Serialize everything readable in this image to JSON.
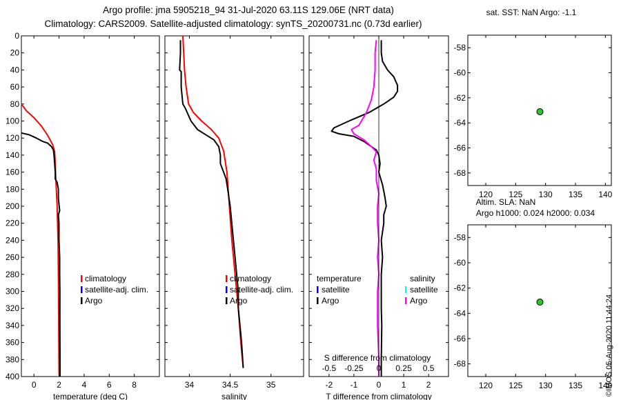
{
  "header": {
    "line1": "Argo profile: jma 5905218_94 31-Jul-2020 63.11S 129.06E (NRT data)",
    "line2": "Climatology: CARS2009. Satellite-adjusted climatology: synTS_20200731.nc (0.73d earlier)"
  },
  "stamp": "©IMOS 05-Aug-2020 11:44:24",
  "colors": {
    "climatology": "#ff0000",
    "satellite": "#0000ff",
    "argo": "#000000",
    "salinity_argo": "#ff00ff",
    "salinity_satellite": "#00ffff",
    "marker_fill": "#22cc22"
  },
  "chart_data": [
    {
      "id": "temperature",
      "type": "line",
      "xlabel": "temperature (deg C)",
      "xlim": [
        -1,
        10
      ],
      "ylim": [
        400,
        0
      ],
      "xticks": [
        0,
        2,
        4,
        6,
        8
      ],
      "xtick_labels": [
        "0",
        "2",
        "4",
        "6",
        "8"
      ],
      "yticks": [
        0,
        20,
        40,
        60,
        80,
        100,
        120,
        140,
        160,
        180,
        200,
        220,
        240,
        260,
        280,
        300,
        320,
        340,
        360,
        380,
        400
      ],
      "ytick_labels": [
        "0",
        "20",
        "40",
        "60",
        "80",
        "100",
        "120",
        "140",
        "160",
        "180",
        "200",
        "220",
        "240",
        "260",
        "280",
        "300",
        "320",
        "340",
        "360",
        "380",
        "400"
      ],
      "legend": [
        "climatology",
        "satellite-adj. clim.",
        "Argo"
      ],
      "series": [
        {
          "name": "climatology",
          "color": "#ff0000",
          "points": [
            [
              -1.0,
              80
            ],
            [
              -0.6,
              88
            ],
            [
              0.0,
              96
            ],
            [
              0.6,
              106
            ],
            [
              1.1,
              117
            ],
            [
              1.5,
              128
            ],
            [
              1.65,
              136
            ],
            [
              1.7,
              150
            ],
            [
              1.75,
              170
            ],
            [
              1.85,
              200
            ],
            [
              1.92,
              240
            ],
            [
              1.95,
              280
            ],
            [
              1.97,
              320
            ],
            [
              1.98,
              360
            ],
            [
              2.0,
              398
            ]
          ]
        },
        {
          "name": "Argo",
          "color": "#000000",
          "points": [
            [
              -1.0,
              114
            ],
            [
              -0.4,
              116
            ],
            [
              0.2,
              120
            ],
            [
              0.7,
              124
            ],
            [
              1.1,
              126
            ],
            [
              1.4,
              130
            ],
            [
              1.55,
              134
            ],
            [
              1.6,
              140
            ],
            [
              1.65,
              150
            ],
            [
              1.7,
              160
            ],
            [
              1.7,
              168
            ],
            [
              1.85,
              172
            ],
            [
              1.95,
              180
            ],
            [
              1.95,
              190
            ],
            [
              2.0,
              198
            ],
            [
              2.05,
              205
            ],
            [
              1.95,
              210
            ],
            [
              2.0,
              220
            ],
            [
              2.0,
              240
            ],
            [
              2.05,
              260
            ],
            [
              2.05,
              280
            ],
            [
              2.07,
              300
            ],
            [
              2.07,
              340
            ],
            [
              2.08,
              380
            ],
            [
              2.08,
              400
            ]
          ]
        }
      ]
    },
    {
      "id": "salinity",
      "type": "line",
      "xlabel": "salinity",
      "xlim": [
        33.7,
        35.4
      ],
      "ylim": [
        400,
        0
      ],
      "xticks": [
        34,
        34.5,
        35
      ],
      "xtick_labels": [
        "34",
        "34.5",
        "35"
      ],
      "legend": [
        "climatology",
        "satellite-adj. clim.",
        "Argo"
      ],
      "series": [
        {
          "name": "climatology",
          "color": "#ff0000",
          "points": [
            [
              33.92,
              0
            ],
            [
              33.93,
              20
            ],
            [
              33.94,
              40
            ],
            [
              33.96,
              60
            ],
            [
              33.99,
              80
            ],
            [
              34.05,
              90
            ],
            [
              34.15,
              100
            ],
            [
              34.27,
              110
            ],
            [
              34.36,
              120
            ],
            [
              34.42,
              135
            ],
            [
              34.46,
              160
            ],
            [
              34.49,
              200
            ],
            [
              34.52,
              240
            ],
            [
              34.56,
              280
            ],
            [
              34.6,
              320
            ],
            [
              34.63,
              360
            ],
            [
              34.66,
              390
            ]
          ]
        },
        {
          "name": "Argo",
          "color": "#000000",
          "points": [
            [
              33.89,
              5
            ],
            [
              33.89,
              20
            ],
            [
              33.88,
              40
            ],
            [
              33.9,
              42
            ],
            [
              33.9,
              60
            ],
            [
              33.92,
              80
            ],
            [
              33.95,
              85
            ],
            [
              34.02,
              100
            ],
            [
              34.1,
              110
            ],
            [
              34.2,
              116
            ],
            [
              34.3,
              122
            ],
            [
              34.36,
              130
            ],
            [
              34.38,
              140
            ],
            [
              34.38,
              150
            ],
            [
              34.42,
              160
            ],
            [
              34.45,
              168
            ],
            [
              34.47,
              180
            ],
            [
              34.5,
              200
            ],
            [
              34.53,
              230
            ],
            [
              34.56,
              260
            ],
            [
              34.58,
              280
            ],
            [
              34.6,
              300
            ],
            [
              34.6,
              320
            ],
            [
              34.62,
              340
            ],
            [
              34.64,
              360
            ],
            [
              34.66,
              390
            ]
          ]
        }
      ]
    },
    {
      "id": "difference",
      "type": "line",
      "xlabel": "T difference from climatology",
      "x2label": "S difference from climatology",
      "xlim": [
        -2.8,
        2.8
      ],
      "ylim": [
        400,
        0
      ],
      "xticks": [
        -2,
        -1,
        0,
        1,
        2
      ],
      "xtick_labels": [
        "-2",
        "-1",
        "0",
        "1",
        "2"
      ],
      "x2ticks": [
        -0.5,
        -0.25,
        0,
        0.25,
        0.5
      ],
      "x2tick_labels": [
        "-0.5",
        "-0.25",
        "0",
        "0.25",
        "0.5"
      ],
      "legend_temperature_title": "temperature",
      "legend_salinity_title": "salinity",
      "legend_temperature": [
        "satellite",
        "Argo"
      ],
      "legend_salinity": [
        "satellite",
        "Argo"
      ],
      "series": [
        {
          "name": "Argo",
          "color": "#000000",
          "points": [
            [
              0.1,
              5
            ],
            [
              0.1,
              20
            ],
            [
              0.15,
              30
            ],
            [
              0.35,
              40
            ],
            [
              0.6,
              48
            ],
            [
              0.75,
              58
            ],
            [
              0.75,
              65
            ],
            [
              0.6,
              72
            ],
            [
              0.2,
              80
            ],
            [
              -0.4,
              90
            ],
            [
              -1.2,
              100
            ],
            [
              -1.8,
              108
            ],
            [
              -1.9,
              112
            ],
            [
              -1.6,
              115
            ],
            [
              -1.0,
              118
            ],
            [
              -0.6,
              124
            ],
            [
              -0.3,
              130
            ],
            [
              -0.1,
              134
            ],
            [
              0.0,
              140
            ],
            [
              0.05,
              150
            ],
            [
              0.0,
              160
            ],
            [
              0.15,
              175
            ],
            [
              0.25,
              190
            ],
            [
              0.3,
              200
            ],
            [
              0.2,
              210
            ],
            [
              0.2,
              220
            ],
            [
              0.1,
              240
            ],
            [
              0.15,
              260
            ],
            [
              0.1,
              280
            ],
            [
              0.1,
              300
            ],
            [
              0.1,
              320
            ],
            [
              0.12,
              340
            ],
            [
              0.1,
              380
            ],
            [
              0.1,
              400
            ]
          ]
        },
        {
          "name": "salinity Argo",
          "color": "#ff00ff",
          "points": [
            [
              -0.1,
              5
            ],
            [
              -0.15,
              20
            ],
            [
              -0.15,
              40
            ],
            [
              -0.2,
              60
            ],
            [
              -0.3,
              75
            ],
            [
              -0.5,
              90
            ],
            [
              -0.8,
              105
            ],
            [
              -1.1,
              110
            ],
            [
              -1.0,
              115
            ],
            [
              -0.6,
              122
            ],
            [
              -0.3,
              130
            ],
            [
              -0.1,
              136
            ],
            [
              -0.2,
              146
            ],
            [
              -0.1,
              156
            ],
            [
              -0.1,
              170
            ],
            [
              0.0,
              185
            ],
            [
              -0.05,
              200
            ],
            [
              -0.05,
              220
            ],
            [
              0.0,
              240
            ],
            [
              -0.05,
              260
            ],
            [
              0.0,
              280
            ],
            [
              -0.05,
              300
            ],
            [
              -0.05,
              340
            ],
            [
              0.0,
              380
            ],
            [
              0.0,
              400
            ]
          ]
        }
      ]
    },
    {
      "id": "sst-map",
      "type": "scatter",
      "title": "sat. SST: NaN Argo: -1.1",
      "xlim": [
        117,
        141
      ],
      "ylim": [
        -69,
        -57
      ],
      "xticks": [
        120,
        125,
        130,
        135,
        140
      ],
      "xtick_labels": [
        "120",
        "125",
        "130",
        "135",
        "140"
      ],
      "yticks": [
        -58,
        -60,
        -62,
        -64,
        -66,
        -68
      ],
      "ytick_labels": [
        "-58",
        "-60",
        "-62",
        "-64",
        "-66",
        "-68"
      ],
      "points": [
        [
          129.06,
          -63.11
        ]
      ]
    },
    {
      "id": "sla-map",
      "type": "scatter",
      "title": "Altim. SLA: NaN",
      "subtitle": "Argo h1000: 0.024 h2000: 0.034",
      "xlim": [
        117,
        141
      ],
      "ylim": [
        -69,
        -57
      ],
      "xticks": [
        120,
        125,
        130,
        135,
        140
      ],
      "xtick_labels": [
        "120",
        "125",
        "130",
        "135",
        "140"
      ],
      "yticks": [
        -58,
        -60,
        -62,
        -64,
        -66,
        -68
      ],
      "ytick_labels": [
        "-58",
        "-60",
        "-62",
        "-64",
        "-66",
        "-68"
      ],
      "points": [
        [
          129.06,
          -63.11
        ]
      ]
    }
  ]
}
